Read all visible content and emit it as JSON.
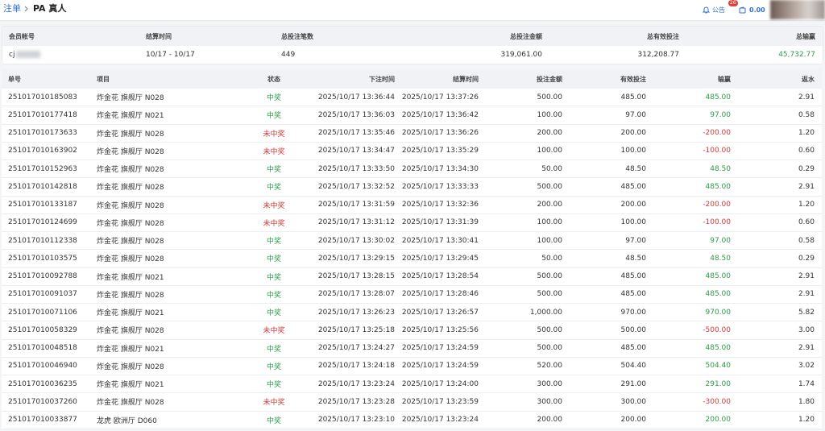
{
  "breadcrumb": {
    "parent": "注单",
    "current": "PA 真人"
  },
  "topbar": {
    "notice": "公告",
    "notice_badge": "26",
    "balance": "0.00"
  },
  "summary": {
    "headers": [
      "会员帐号",
      "结算时间",
      "总投注笔数",
      "总投注金额",
      "总有效投注",
      "总输赢"
    ],
    "row": [
      "cj",
      "10/17 - 10/17",
      "449",
      "319,061.00",
      "312,208.77",
      "45,732.77"
    ]
  },
  "table": {
    "headers": [
      "单号",
      "项目",
      "状态",
      "下注时间",
      "结算时间",
      "投注金额",
      "有效投注",
      "输赢",
      "返水"
    ],
    "rows": [
      [
        "251017010185083",
        "炸金花 旗舰厅 N028",
        "中奖",
        "2025/10/17 13:36:44",
        "2025/10/17 13:37:26",
        "500.00",
        "485.00",
        "485.00",
        "2.91"
      ],
      [
        "251017010177418",
        "炸金花 旗舰厅 N021",
        "中奖",
        "2025/10/17 13:36:03",
        "2025/10/17 13:36:42",
        "100.00",
        "97.00",
        "97.00",
        "0.58"
      ],
      [
        "251017010173633",
        "炸金花 旗舰厅 N028",
        "未中奖",
        "2025/10/17 13:35:46",
        "2025/10/17 13:36:26",
        "200.00",
        "200.00",
        "-200.00",
        "1.20"
      ],
      [
        "251017010163902",
        "炸金花 旗舰厅 N028",
        "未中奖",
        "2025/10/17 13:34:47",
        "2025/10/17 13:35:29",
        "100.00",
        "100.00",
        "-100.00",
        "0.60"
      ],
      [
        "251017010152963",
        "炸金花 旗舰厅 N028",
        "中奖",
        "2025/10/17 13:33:50",
        "2025/10/17 13:34:30",
        "50.00",
        "48.50",
        "48.50",
        "0.29"
      ],
      [
        "251017010142818",
        "炸金花 旗舰厅 N028",
        "中奖",
        "2025/10/17 13:32:52",
        "2025/10/17 13:33:33",
        "500.00",
        "485.00",
        "485.00",
        "2.91"
      ],
      [
        "251017010133187",
        "炸金花 旗舰厅 N028",
        "未中奖",
        "2025/10/17 13:31:59",
        "2025/10/17 13:32:36",
        "200.00",
        "200.00",
        "-200.00",
        "1.20"
      ],
      [
        "251017010124699",
        "炸金花 旗舰厅 N028",
        "未中奖",
        "2025/10/17 13:31:12",
        "2025/10/17 13:31:39",
        "100.00",
        "100.00",
        "-100.00",
        "0.60"
      ],
      [
        "251017010112338",
        "炸金花 旗舰厅 N028",
        "中奖",
        "2025/10/17 13:30:02",
        "2025/10/17 13:30:41",
        "100.00",
        "97.00",
        "97.00",
        "0.58"
      ],
      [
        "251017010103575",
        "炸金花 旗舰厅 N028",
        "中奖",
        "2025/10/17 13:29:15",
        "2025/10/17 13:29:45",
        "50.00",
        "48.50",
        "48.50",
        "0.29"
      ],
      [
        "251017010092788",
        "炸金花 旗舰厅 N021",
        "中奖",
        "2025/10/17 13:28:15",
        "2025/10/17 13:28:54",
        "500.00",
        "485.00",
        "485.00",
        "2.91"
      ],
      [
        "251017010091037",
        "炸金花 旗舰厅 N028",
        "中奖",
        "2025/10/17 13:28:07",
        "2025/10/17 13:28:46",
        "500.00",
        "485.00",
        "485.00",
        "2.91"
      ],
      [
        "251017010071106",
        "炸金花 旗舰厅 N021",
        "中奖",
        "2025/10/17 13:26:23",
        "2025/10/17 13:26:57",
        "1,000.00",
        "970.00",
        "970.00",
        "5.82"
      ],
      [
        "251017010058329",
        "炸金花 旗舰厅 N028",
        "未中奖",
        "2025/10/17 13:25:18",
        "2025/10/17 13:25:56",
        "500.00",
        "500.00",
        "-500.00",
        "3.00"
      ],
      [
        "251017010048518",
        "炸金花 旗舰厅 N021",
        "中奖",
        "2025/10/17 13:24:27",
        "2025/10/17 13:24:59",
        "500.00",
        "485.00",
        "485.00",
        "2.91"
      ],
      [
        "251017010046940",
        "炸金花 旗舰厅 N028",
        "中奖",
        "2025/10/17 13:24:18",
        "2025/10/17 13:24:59",
        "520.00",
        "504.40",
        "504.40",
        "3.02"
      ],
      [
        "251017010036235",
        "炸金花 旗舰厅 N021",
        "中奖",
        "2025/10/17 13:23:24",
        "2025/10/17 13:24:00",
        "300.00",
        "291.00",
        "291.00",
        "1.74"
      ],
      [
        "251017010037260",
        "炸金花 旗舰厅 N028",
        "未中奖",
        "2025/10/17 13:23:28",
        "2025/10/17 13:23:59",
        "300.00",
        "300.00",
        "-300.00",
        "1.80"
      ],
      [
        "251017010033877",
        "龙虎 欧洲厅 D060",
        "中奖",
        "2025/10/17 13:23:10",
        "2025/10/17 13:23:24",
        "200.00",
        "200.00",
        "200.00",
        "1.20"
      ]
    ]
  }
}
